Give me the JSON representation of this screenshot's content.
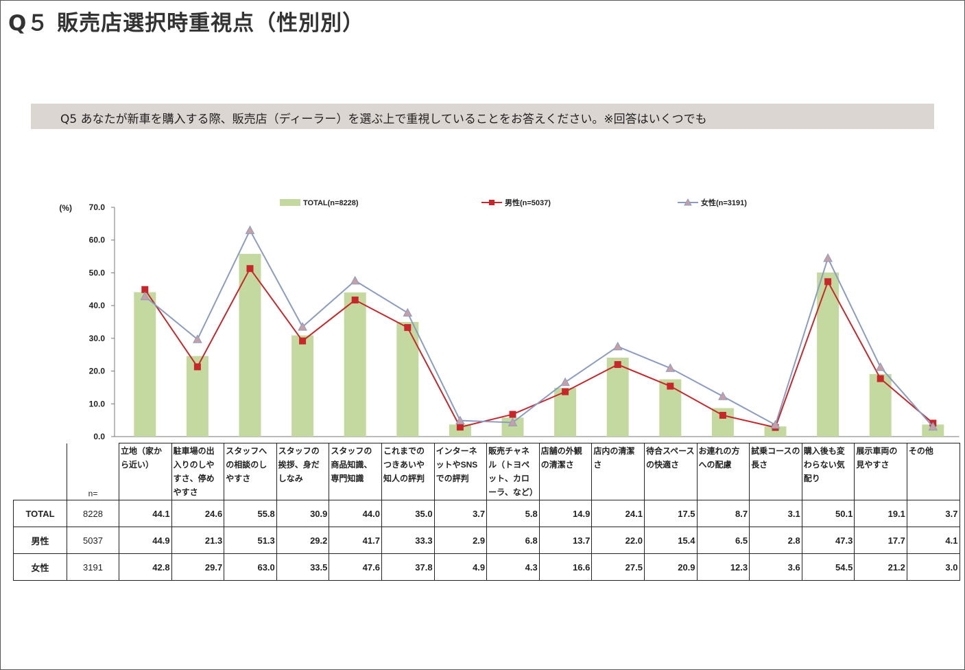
{
  "page_title": "Q５  販売店選択時重視点（性別別）",
  "question": "Q5 あなたが新車を購入する際、販売店（ディーラー）を選ぶ上で重視していることをお答えください。※回答はいくつでも",
  "colors": {
    "bar": "#c4d9a0",
    "male": "#c8262b",
    "female": "#8a9cc2",
    "female_marker": "#c7a0a6",
    "question_bg": "#dcd6d3"
  },
  "chart_data": {
    "type": "bar",
    "y_unit": "(%)",
    "ylim": [
      0,
      70
    ],
    "yticks": [
      "0.0",
      "10.0",
      "20.0",
      "30.0",
      "40.0",
      "50.0",
      "60.0",
      "70.0"
    ],
    "legend_position": "top",
    "categories": [
      "立地（家から近い）",
      "駐車場の出入りのしやすさ、停めやすさ",
      "スタッフへの相談のしやすさ",
      "スタッフの挨拶、身だしなみ",
      "スタッフの商品知識、専門知識",
      "これまでのつきあいや知人の評判",
      "インターネットやSNSでの評判",
      "販売チャネル（トヨペット、カローラ、など）",
      "店舗の外観の清潔さ",
      "店内の清潔さ",
      "待合スペースの快適さ",
      "お連れの方への配慮",
      "試乗コースの長さ",
      "購入後も変わらない気配り",
      "展示車両の見やすさ",
      "その他"
    ],
    "series": [
      {
        "name": "TOTAL(n=8228)",
        "type": "bar",
        "values": [
          44.1,
          24.6,
          55.8,
          30.9,
          44.0,
          35.0,
          3.7,
          5.8,
          14.9,
          24.1,
          17.5,
          8.7,
          3.1,
          50.1,
          19.1,
          3.7
        ]
      },
      {
        "name": "男性(n=5037)",
        "type": "line",
        "marker": "square",
        "values": [
          44.9,
          21.3,
          51.3,
          29.2,
          41.7,
          33.3,
          2.9,
          6.8,
          13.7,
          22.0,
          15.4,
          6.5,
          2.8,
          47.3,
          17.7,
          4.1
        ]
      },
      {
        "name": "女性(n=3191)",
        "type": "line",
        "marker": "triangle",
        "values": [
          42.8,
          29.7,
          63.0,
          33.5,
          47.6,
          37.8,
          4.9,
          4.3,
          16.6,
          27.5,
          20.9,
          12.3,
          3.6,
          54.5,
          21.2,
          3.0
        ]
      }
    ]
  },
  "table": {
    "n_label": "n=",
    "rows": [
      {
        "label": "TOTAL",
        "n": "8228",
        "values": [
          "44.1",
          "24.6",
          "55.8",
          "30.9",
          "44.0",
          "35.0",
          "3.7",
          "5.8",
          "14.9",
          "24.1",
          "17.5",
          "8.7",
          "3.1",
          "50.1",
          "19.1",
          "3.7"
        ]
      },
      {
        "label": "男性",
        "n": "5037",
        "values": [
          "44.9",
          "21.3",
          "51.3",
          "29.2",
          "41.7",
          "33.3",
          "2.9",
          "6.8",
          "13.7",
          "22.0",
          "15.4",
          "6.5",
          "2.8",
          "47.3",
          "17.7",
          "4.1"
        ]
      },
      {
        "label": "女性",
        "n": "3191",
        "values": [
          "42.8",
          "29.7",
          "63.0",
          "33.5",
          "47.6",
          "37.8",
          "4.9",
          "4.3",
          "16.6",
          "27.5",
          "20.9",
          "12.3",
          "3.6",
          "54.5",
          "21.2",
          "3.0"
        ]
      }
    ]
  }
}
